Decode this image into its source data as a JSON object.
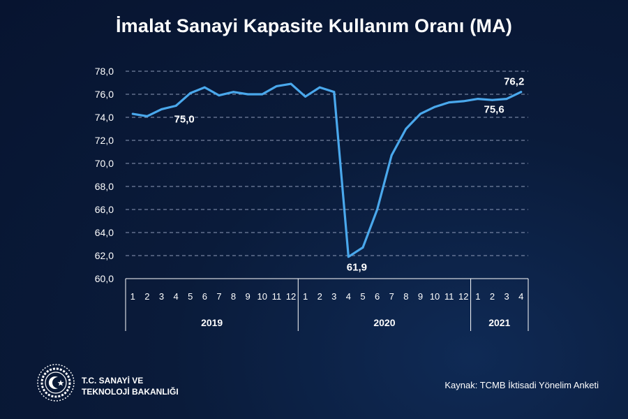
{
  "title": "İmalat Sanayi Kapasite Kullanım Oranı (MA)",
  "footer": {
    "ministry_line1": "T.C. SANAYİ VE",
    "ministry_line2": "TEKNOLOJİ BAKANLIĞI",
    "source_label": "Kaynak:",
    "source_text": "TCMB İktisadi Yönelim Anketi"
  },
  "colors": {
    "line": "#4aa8ec",
    "grid": "#8e9bb8",
    "text": "#ffffff"
  },
  "chart_data": {
    "type": "line",
    "title": "İmalat Sanayi Kapasite Kullanım Oranı (MA)",
    "ylim": [
      60,
      78
    ],
    "yticks": [
      "60,0",
      "62,0",
      "64,0",
      "66,0",
      "68,0",
      "70,0",
      "72,0",
      "74,0",
      "76,0",
      "78,0"
    ],
    "categories": [
      "1",
      "2",
      "3",
      "4",
      "5",
      "6",
      "7",
      "8",
      "9",
      "10",
      "11",
      "12",
      "1",
      "2",
      "3",
      "4",
      "5",
      "6",
      "7",
      "8",
      "9",
      "10",
      "11",
      "12",
      "1",
      "2",
      "3",
      "4"
    ],
    "groups": [
      {
        "label": "2019",
        "count": 12
      },
      {
        "label": "2020",
        "count": 12
      },
      {
        "label": "2021",
        "count": 4
      }
    ],
    "series": [
      {
        "name": "Kapasite Kullanım Oranı",
        "values": [
          74.3,
          74.1,
          74.7,
          75.0,
          76.1,
          76.6,
          75.9,
          76.2,
          76.0,
          76.0,
          76.7,
          76.9,
          75.8,
          76.6,
          76.2,
          61.9,
          62.7,
          66.0,
          70.7,
          73.0,
          74.3,
          74.9,
          75.3,
          75.4,
          75.6,
          75.5,
          75.6,
          76.2
        ]
      }
    ],
    "annotations": [
      {
        "index": 3,
        "label": "75,0"
      },
      {
        "index": 15,
        "label": "61,9"
      },
      {
        "index": 26,
        "label": "75,6"
      },
      {
        "index": 27,
        "label": "76,2"
      }
    ]
  }
}
